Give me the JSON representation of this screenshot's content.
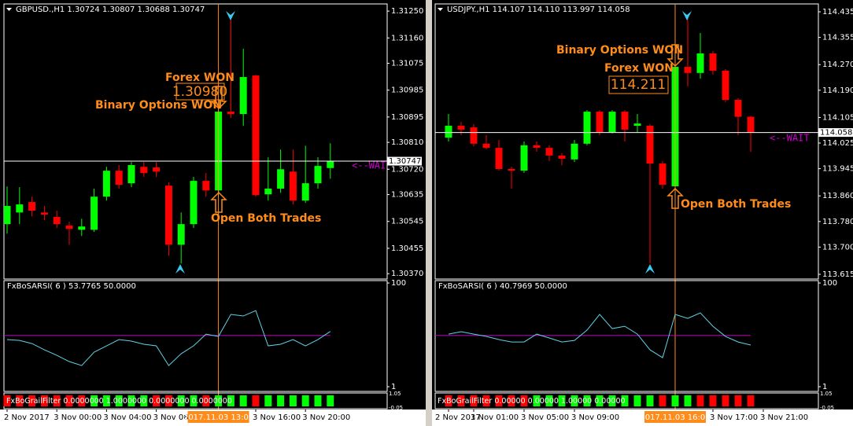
{
  "chart_data": [
    {
      "type": "candlestick",
      "title": "GBPUSD.,H1  1.30724 1.30807 1.30688 1.30747",
      "categories": [
        "2 Nov 2017",
        null,
        null,
        null,
        "3 Nov 00:00",
        null,
        null,
        null,
        "3 Nov 04:00",
        null,
        null,
        null,
        "3 Nov 08:00",
        null,
        null,
        null,
        null,
        "2017.11.03 13:00",
        null,
        null,
        "3 Nov 16:00",
        null,
        null,
        null,
        "3 Nov 20:00",
        null,
        null
      ],
      "open": [
        1.30536,
        1.30575,
        1.3061,
        1.30575,
        1.3056,
        1.30531,
        1.30517,
        1.30517,
        1.30628,
        1.30715,
        1.30673,
        1.30728,
        1.30726,
        1.30665,
        1.30467,
        1.30536,
        1.30681,
        1.30649,
        1.30913,
        1.30905,
        1.31034,
        1.30636,
        1.30655,
        1.30712,
        1.30615,
        1.30673,
        1.30724
      ],
      "high": [
        1.30662,
        1.3066,
        1.30628,
        1.30597,
        1.30581,
        1.30544,
        1.30554,
        1.30655,
        1.30728,
        1.30734,
        1.30744,
        1.30744,
        1.30744,
        1.30676,
        1.30575,
        1.30694,
        1.30707,
        1.30918,
        1.31229,
        1.31124,
        1.31037,
        1.3076,
        1.30786,
        1.30786,
        1.30799,
        1.3076,
        1.30807
      ],
      "low": [
        1.30504,
        1.30536,
        1.30562,
        1.30549,
        1.30523,
        1.30467,
        1.30496,
        1.3051,
        1.30615,
        1.30655,
        1.3066,
        1.30694,
        1.30694,
        1.3043,
        1.30404,
        1.30523,
        1.30628,
        1.30628,
        1.30892,
        1.30865,
        1.30628,
        1.30615,
        1.30641,
        1.30602,
        1.30607,
        1.30655,
        1.30688
      ],
      "close": [
        1.30597,
        1.30602,
        1.30581,
        1.30568,
        1.30536,
        1.3052,
        1.30528,
        1.30628,
        1.30715,
        1.30668,
        1.30734,
        1.30707,
        1.30712,
        1.30467,
        1.30536,
        1.30681,
        1.30649,
        1.30913,
        1.30905,
        1.31029,
        1.30633,
        1.30655,
        1.3072,
        1.30615,
        1.30673,
        1.30731,
        1.30747
      ],
      "up_color": "#00ff00",
      "down_color": "#ff0000",
      "ylim": [
        1.30352,
        1.31274
      ],
      "yticks": [
        {
          "value": 1.3125,
          "label": "1.31250"
        },
        {
          "value": 1.3116,
          "label": "1.31160"
        },
        1.31075,
        1.30985,
        1.30895,
        {
          "value": 1.3081,
          "label": "1.30810"
        },
        {
          "value": 1.3072,
          "label": "1.30720"
        },
        1.30635,
        1.30545,
        1.30455,
        {
          "value": 1.3037,
          "label": "1.30370"
        }
      ],
      "current_price": 1.30747,
      "annotations": [
        "Forex WON",
        "1.30980",
        "Binary Options WON",
        "Open Both Trades",
        "<--WAIT"
      ]
    },
    {
      "type": "line",
      "title": "FxBoSARSI( 6 ) 53.7765 50.0000",
      "values": [
        46.0,
        45.2,
        42.2,
        36.2,
        31.0,
        25.0,
        21.2,
        34.0,
        40.0,
        46.0,
        44.5,
        41.5,
        40.0,
        21.2,
        32.5,
        40.0,
        51.2,
        49.0,
        70.0,
        68.5,
        73.7,
        40.0,
        41.5,
        46.0,
        40.0,
        46.0,
        53.7765
      ],
      "color": "#5fd3e8",
      "level": 50,
      "level_color": "#c000c0",
      "ylim": [
        -3.5,
        102.3
      ],
      "yticks": [
        100,
        1
      ]
    },
    {
      "type": "signal",
      "title": "FxBoGrailFilter 0.0000000 1.0000000 0.0000000 0.0000000",
      "values": [
        0,
        0,
        0,
        0,
        0,
        0,
        0,
        1,
        1,
        1,
        1,
        1,
        0,
        0,
        1,
        1,
        0,
        1,
        1,
        1,
        0,
        1,
        1,
        1,
        1,
        1,
        1
      ],
      "up_color": "#00ff00",
      "down_color": "#ff0000",
      "ylim": [
        -0.1,
        1.1
      ],
      "yticks": [
        1.05,
        -0.05
      ]
    },
    {
      "type": "candlestick",
      "title": "USDJPY.,H1  114.107 114.110 113.997 114.058",
      "categories": [
        "2 Nov 2017",
        null,
        "3 Nov 01:00",
        null,
        null,
        null,
        "3 Nov 05:00",
        null,
        null,
        null,
        "3 Nov 09:00",
        null,
        null,
        null,
        null,
        null,
        null,
        null,
        "2017.11.03 16:00",
        null,
        null,
        "3 Nov 17:00",
        null,
        null,
        null,
        "3 Nov 21:00"
      ],
      "open": [
        114.042,
        114.079,
        114.074,
        114.023,
        114.01,
        113.944,
        113.939,
        114.018,
        114.01,
        113.986,
        113.974,
        114.023,
        114.123,
        114.059,
        114.123,
        114.079,
        114.079,
        113.961,
        113.89,
        114.263,
        114.244,
        114.305,
        114.251,
        114.16,
        114.107,
        null
      ],
      "high": [
        114.116,
        114.091,
        114.084,
        114.05,
        114.035,
        113.951,
        114.03,
        114.03,
        114.018,
        113.993,
        114.035,
        114.128,
        114.128,
        114.128,
        114.128,
        114.116,
        114.084,
        113.969,
        114.268,
        114.423,
        114.369,
        114.312,
        114.256,
        114.165,
        114.11,
        null
      ],
      "low": [
        114.03,
        114.05,
        114.015,
        114.005,
        113.939,
        113.883,
        113.932,
        113.998,
        113.969,
        113.956,
        113.966,
        114.018,
        114.05,
        114.055,
        114.03,
        114.059,
        113.649,
        113.883,
        113.883,
        114.202,
        114.226,
        114.239,
        114.153,
        114.05,
        113.997,
        null
      ],
      "close": [
        114.079,
        114.067,
        114.023,
        114.01,
        113.944,
        113.939,
        114.018,
        114.01,
        113.986,
        113.976,
        114.023,
        114.123,
        114.059,
        114.123,
        114.067,
        114.086,
        113.961,
        113.895,
        114.263,
        114.244,
        114.305,
        114.251,
        114.16,
        114.107,
        114.058,
        null
      ],
      "up_color": "#00ff00",
      "down_color": "#ff0000",
      "ylim": [
        113.6003,
        114.4596
      ],
      "yticks": [
        114.435,
        114.355,
        {
          "value": 114.27,
          "label": "114.270"
        },
        {
          "value": 114.19,
          "label": "114.190"
        },
        114.105,
        114.025,
        113.945,
        {
          "value": 113.86,
          "label": "113.860"
        },
        {
          "value": 113.78,
          "label": "113.780"
        },
        {
          "value": 113.7,
          "label": "113.700"
        },
        113.615
      ],
      "current_price": 114.058,
      "annotations": [
        "Binary Options WON",
        "Forex WON",
        "114.211",
        "Open Both Trades",
        "<--WAIT"
      ]
    },
    {
      "type": "line",
      "title": "FxBoSARSI( 6 ) 40.7969 50.0000",
      "values": [
        51.2,
        53.5,
        51.2,
        49.0,
        46.0,
        43.7,
        43.7,
        51.2,
        47.5,
        43.7,
        45.2,
        55.0,
        70.0,
        56.5,
        58.7,
        51.2,
        36.2,
        28.7,
        70.0,
        66.2,
        71.5,
        58.7,
        49.0,
        43.7,
        40.7969,
        null
      ],
      "color": "#5fd3e8",
      "level": 50,
      "level_color": "#c000c0",
      "ylim": [
        -3.5,
        102.3
      ],
      "yticks": [
        100,
        1
      ]
    },
    {
      "type": "signal",
      "title": "FxBoGrailFilter 0.00000 0.00000 1.00000 0.00000",
      "values": [
        0,
        0,
        0,
        0,
        0,
        0,
        0,
        1,
        1,
        1,
        1,
        1,
        1,
        1,
        1,
        1,
        1,
        0,
        1,
        1,
        0,
        0,
        0,
        0,
        0,
        null
      ],
      "up_color": "#00ff00",
      "down_color": "#ff0000",
      "ylim": [
        -0.1,
        1.1
      ],
      "yticks": [
        1.05,
        -0.05
      ]
    }
  ]
}
